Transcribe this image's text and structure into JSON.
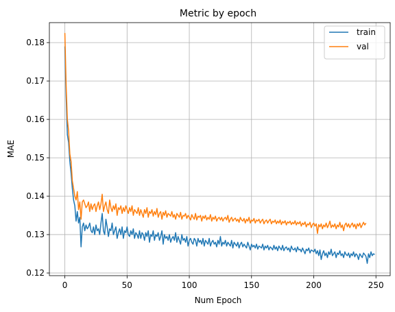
{
  "chart_data": {
    "type": "line",
    "title": "Metric by epoch",
    "xlabel": "Num Epoch",
    "ylabel": "MAE",
    "xlim": [
      -12.45,
      261.45
    ],
    "ylim": [
      0.1193,
      0.1852
    ],
    "x_ticks": [
      0,
      50,
      100,
      150,
      200,
      250
    ],
    "x_tick_labels": [
      "0",
      "50",
      "100",
      "150",
      "200",
      "250"
    ],
    "y_ticks": [
      0.12,
      0.13,
      0.14,
      0.15,
      0.16,
      0.17,
      0.18
    ],
    "y_tick_labels": [
      "0.12",
      "0.13",
      "0.14",
      "0.15",
      "0.16",
      "0.17",
      "0.18"
    ],
    "grid": true,
    "legend_position": "top-right",
    "x": {
      "start": 0,
      "end": 249,
      "step": 1
    },
    "series": [
      {
        "name": "train",
        "color": "#1f77b4",
        "values": [
          0.179,
          0.166,
          0.156,
          0.154,
          0.149,
          0.146,
          0.142,
          0.139,
          0.1375,
          0.1335,
          0.136,
          0.133,
          0.1345,
          0.1268,
          0.132,
          0.133,
          0.131,
          0.1325,
          0.1315,
          0.132,
          0.133,
          0.131,
          0.1305,
          0.132,
          0.13,
          0.1325,
          0.131,
          0.1315,
          0.13,
          0.133,
          0.1355,
          0.131,
          0.13,
          0.134,
          0.132,
          0.1295,
          0.1315,
          0.131,
          0.133,
          0.13,
          0.131,
          0.132,
          0.129,
          0.1305,
          0.1315,
          0.13,
          0.132,
          0.129,
          0.131,
          0.1305,
          0.132,
          0.13,
          0.1295,
          0.131,
          0.13,
          0.1315,
          0.129,
          0.1305,
          0.13,
          0.129,
          0.131,
          0.129,
          0.1305,
          0.13,
          0.1285,
          0.1305,
          0.1295,
          0.131,
          0.128,
          0.13,
          0.1295,
          0.131,
          0.1285,
          0.13,
          0.1295,
          0.1305,
          0.1285,
          0.1295,
          0.131,
          0.1275,
          0.13,
          0.129,
          0.1295,
          0.1285,
          0.13,
          0.128,
          0.129,
          0.1295,
          0.1285,
          0.1305,
          0.128,
          0.1295,
          0.1285,
          0.1275,
          0.13,
          0.1285,
          0.129,
          0.128,
          0.1295,
          0.127,
          0.1285,
          0.129,
          0.128,
          0.1275,
          0.129,
          0.1285,
          0.127,
          0.129,
          0.128,
          0.1285,
          0.1275,
          0.129,
          0.127,
          0.1285,
          0.128,
          0.1275,
          0.129,
          0.127,
          0.128,
          0.1285,
          0.1275,
          0.128,
          0.1268,
          0.1285,
          0.1275,
          0.1295,
          0.127,
          0.128,
          0.1275,
          0.1285,
          0.127,
          0.128,
          0.1275,
          0.127,
          0.1285,
          0.1265,
          0.128,
          0.1275,
          0.127,
          0.128,
          0.1265,
          0.1275,
          0.128,
          0.1268,
          0.1275,
          0.127,
          0.1265,
          0.128,
          0.127,
          0.126,
          0.1275,
          0.1268,
          0.1272,
          0.1265,
          0.1275,
          0.1262,
          0.127,
          0.1268,
          0.1265,
          0.1275,
          0.126,
          0.127,
          0.1265,
          0.1272,
          0.126,
          0.1268,
          0.1265,
          0.126,
          0.1272,
          0.1262,
          0.1268,
          0.1258,
          0.127,
          0.1265,
          0.126,
          0.1272,
          0.1258,
          0.1265,
          0.1268,
          0.126,
          0.1265,
          0.1255,
          0.127,
          0.1262,
          0.126,
          0.1265,
          0.1255,
          0.1268,
          0.126,
          0.1262,
          0.1255,
          0.1265,
          0.1258,
          0.125,
          0.1262,
          0.1258,
          0.1265,
          0.1252,
          0.126,
          0.1258,
          0.1255,
          0.1262,
          0.125,
          0.1258,
          0.1245,
          0.126,
          0.1235,
          0.125,
          0.1258,
          0.1245,
          0.1252,
          0.124,
          0.1255,
          0.1248,
          0.1262,
          0.1245,
          0.125,
          0.1255,
          0.124,
          0.1252,
          0.1248,
          0.1258,
          0.1245,
          0.125,
          0.124,
          0.1255,
          0.1248,
          0.1245,
          0.1252,
          0.124,
          0.125,
          0.1245,
          0.1255,
          0.1242,
          0.125,
          0.1246,
          0.1235,
          0.125,
          0.1245,
          0.124,
          0.1252,
          0.1248,
          0.1243,
          0.1225,
          0.125,
          0.124,
          0.1255,
          0.1245,
          0.125,
          0.1248
        ]
      },
      {
        "name": "val",
        "color": "#ff7f0e",
        "values": [
          0.1825,
          0.169,
          0.16,
          0.157,
          0.151,
          0.149,
          0.144,
          0.142,
          0.14,
          0.139,
          0.1412,
          0.1365,
          0.1385,
          0.134,
          0.1385,
          0.139,
          0.138,
          0.137,
          0.1375,
          0.1385,
          0.136,
          0.138,
          0.1365,
          0.1375,
          0.138,
          0.136,
          0.1375,
          0.1385,
          0.1365,
          0.138,
          0.1405,
          0.136,
          0.1375,
          0.1385,
          0.1365,
          0.1355,
          0.139,
          0.137,
          0.136,
          0.1375,
          0.1365,
          0.138,
          0.135,
          0.137,
          0.1365,
          0.1375,
          0.1355,
          0.137,
          0.136,
          0.1375,
          0.1365,
          0.1355,
          0.137,
          0.136,
          0.1375,
          0.135,
          0.1365,
          0.136,
          0.1355,
          0.137,
          0.135,
          0.1365,
          0.1355,
          0.1345,
          0.1365,
          0.1355,
          0.137,
          0.1345,
          0.136,
          0.1355,
          0.1365,
          0.1348,
          0.136,
          0.1352,
          0.1368,
          0.1345,
          0.1355,
          0.136,
          0.134,
          0.1358,
          0.135,
          0.1362,
          0.1345,
          0.1355,
          0.1352,
          0.1348,
          0.136,
          0.1345,
          0.1352,
          0.134,
          0.1355,
          0.135,
          0.1345,
          0.1358,
          0.134,
          0.135,
          0.1348,
          0.1355,
          0.1342,
          0.135,
          0.1345,
          0.1338,
          0.1352,
          0.1345,
          0.134,
          0.1355,
          0.1338,
          0.1348,
          0.1345,
          0.135,
          0.1335,
          0.1348,
          0.1342,
          0.135,
          0.1338,
          0.1345,
          0.134,
          0.1352,
          0.1335,
          0.1345,
          0.134,
          0.1348,
          0.1335,
          0.1342,
          0.1345,
          0.1338,
          0.1345,
          0.1335,
          0.1342,
          0.1345,
          0.1338,
          0.135,
          0.1332,
          0.134,
          0.1345,
          0.1335,
          0.134,
          0.1343,
          0.1335,
          0.134,
          0.1332,
          0.1345,
          0.1338,
          0.1335,
          0.1342,
          0.133,
          0.134,
          0.1335,
          0.1345,
          0.133,
          0.1338,
          0.1335,
          0.1342,
          0.133,
          0.1338,
          0.1335,
          0.134,
          0.133,
          0.1336,
          0.134,
          0.1328,
          0.1335,
          0.1338,
          0.133,
          0.1336,
          0.134,
          0.1328,
          0.1335,
          0.1332,
          0.1338,
          0.1328,
          0.1335,
          0.133,
          0.1338,
          0.1326,
          0.1334,
          0.133,
          0.1336,
          0.1325,
          0.1333,
          0.133,
          0.1335,
          0.1326,
          0.1332,
          0.1328,
          0.1336,
          0.1325,
          0.1332,
          0.1328,
          0.1334,
          0.1322,
          0.133,
          0.1326,
          0.1333,
          0.132,
          0.1328,
          0.1325,
          0.1332,
          0.1318,
          0.1326,
          0.133,
          0.1322,
          0.1328,
          0.1303,
          0.1326,
          0.132,
          0.1328,
          0.1315,
          0.1325,
          0.132,
          0.133,
          0.1318,
          0.1325,
          0.1335,
          0.1318,
          0.1325,
          0.132,
          0.1328,
          0.1315,
          0.1325,
          0.132,
          0.1332,
          0.1318,
          0.1325,
          0.131,
          0.1325,
          0.133,
          0.132,
          0.1328,
          0.1318,
          0.1325,
          0.133,
          0.132,
          0.1327,
          0.1315,
          0.1328,
          0.1322,
          0.133,
          0.1318,
          0.1325,
          0.1332,
          0.1325,
          0.133
        ]
      }
    ]
  }
}
